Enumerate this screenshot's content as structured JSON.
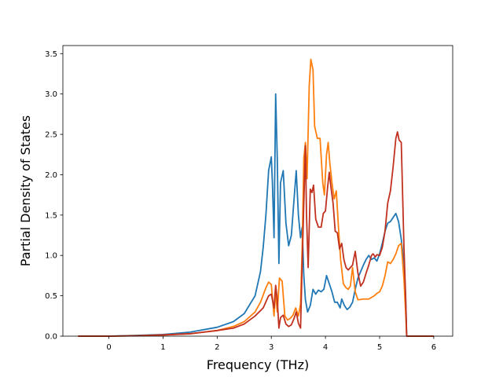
{
  "chart_data": {
    "type": "line",
    "title": "",
    "xlabel": "Frequency (THz)",
    "ylabel": "Partial Density of States",
    "xlim": [
      -0.85,
      6.35
    ],
    "ylim": [
      0.0,
      3.6
    ],
    "xticks": [
      0,
      1,
      2,
      3,
      4,
      5,
      6
    ],
    "xtick_labels": [
      "0",
      "1",
      "2",
      "3",
      "4",
      "5",
      "6"
    ],
    "yticks": [
      0.0,
      0.5,
      1.0,
      1.5,
      2.0,
      2.5,
      3.0,
      3.5
    ],
    "ytick_labels": [
      "0.0",
      "0.5",
      "1.0",
      "1.5",
      "2.0",
      "2.5",
      "3.0",
      "3.5"
    ],
    "grid": false,
    "legend": "none",
    "series": [
      {
        "color": "#1f77b4",
        "points": [
          [
            -0.57,
            0.0
          ],
          [
            0.0,
            0.0
          ],
          [
            0.5,
            0.01
          ],
          [
            1.0,
            0.02
          ],
          [
            1.5,
            0.05
          ],
          [
            2.0,
            0.11
          ],
          [
            2.3,
            0.18
          ],
          [
            2.5,
            0.28
          ],
          [
            2.7,
            0.5
          ],
          [
            2.8,
            0.8
          ],
          [
            2.85,
            1.1
          ],
          [
            2.9,
            1.5
          ],
          [
            2.95,
            2.05
          ],
          [
            3.0,
            2.22
          ],
          [
            3.02,
            1.9
          ],
          [
            3.05,
            1.22
          ],
          [
            3.08,
            3.0
          ],
          [
            3.11,
            2.2
          ],
          [
            3.14,
            0.9
          ],
          [
            3.17,
            1.9
          ],
          [
            3.22,
            2.05
          ],
          [
            3.27,
            1.4
          ],
          [
            3.32,
            1.12
          ],
          [
            3.37,
            1.25
          ],
          [
            3.42,
            1.7
          ],
          [
            3.46,
            2.05
          ],
          [
            3.5,
            1.5
          ],
          [
            3.54,
            1.22
          ],
          [
            3.57,
            1.35
          ],
          [
            3.6,
            0.75
          ],
          [
            3.63,
            0.45
          ],
          [
            3.67,
            0.3
          ],
          [
            3.72,
            0.38
          ],
          [
            3.77,
            0.58
          ],
          [
            3.82,
            0.52
          ],
          [
            3.87,
            0.57
          ],
          [
            3.92,
            0.55
          ],
          [
            3.97,
            0.58
          ],
          [
            4.02,
            0.75
          ],
          [
            4.07,
            0.65
          ],
          [
            4.12,
            0.55
          ],
          [
            4.17,
            0.42
          ],
          [
            4.22,
            0.42
          ],
          [
            4.27,
            0.35
          ],
          [
            4.3,
            0.46
          ],
          [
            4.35,
            0.38
          ],
          [
            4.4,
            0.33
          ],
          [
            4.45,
            0.36
          ],
          [
            4.5,
            0.42
          ],
          [
            4.55,
            0.58
          ],
          [
            4.6,
            0.72
          ],
          [
            4.65,
            0.8
          ],
          [
            4.7,
            0.88
          ],
          [
            4.75,
            0.95
          ],
          [
            4.8,
            1.0
          ],
          [
            4.85,
            0.95
          ],
          [
            4.9,
            0.97
          ],
          [
            4.95,
            0.93
          ],
          [
            5.0,
            1.02
          ],
          [
            5.05,
            1.15
          ],
          [
            5.1,
            1.3
          ],
          [
            5.15,
            1.4
          ],
          [
            5.2,
            1.42
          ],
          [
            5.25,
            1.47
          ],
          [
            5.3,
            1.52
          ],
          [
            5.35,
            1.42
          ],
          [
            5.4,
            1.2
          ],
          [
            5.45,
            0.9
          ],
          [
            5.48,
            0.5
          ],
          [
            5.5,
            0.0
          ],
          [
            6.0,
            0.0
          ]
        ]
      },
      {
        "color": "#ff7f0e",
        "points": [
          [
            -0.57,
            0.0
          ],
          [
            0.0,
            0.0
          ],
          [
            0.5,
            0.005
          ],
          [
            1.0,
            0.015
          ],
          [
            1.5,
            0.03
          ],
          [
            2.0,
            0.07
          ],
          [
            2.3,
            0.12
          ],
          [
            2.5,
            0.18
          ],
          [
            2.7,
            0.3
          ],
          [
            2.8,
            0.42
          ],
          [
            2.9,
            0.6
          ],
          [
            2.95,
            0.67
          ],
          [
            3.0,
            0.64
          ],
          [
            3.05,
            0.25
          ],
          [
            3.08,
            0.55
          ],
          [
            3.11,
            0.3
          ],
          [
            3.15,
            0.72
          ],
          [
            3.2,
            0.68
          ],
          [
            3.25,
            0.25
          ],
          [
            3.3,
            0.2
          ],
          [
            3.35,
            0.22
          ],
          [
            3.4,
            0.26
          ],
          [
            3.45,
            0.35
          ],
          [
            3.5,
            0.25
          ],
          [
            3.54,
            0.4
          ],
          [
            3.57,
            1.1
          ],
          [
            3.6,
            2.2
          ],
          [
            3.63,
            2.4
          ],
          [
            3.66,
            1.95
          ],
          [
            3.7,
            3.1
          ],
          [
            3.73,
            3.43
          ],
          [
            3.77,
            3.3
          ],
          [
            3.8,
            2.6
          ],
          [
            3.85,
            2.45
          ],
          [
            3.9,
            2.45
          ],
          [
            3.95,
            1.9
          ],
          [
            3.98,
            1.75
          ],
          [
            4.02,
            2.25
          ],
          [
            4.05,
            2.4
          ],
          [
            4.08,
            2.15
          ],
          [
            4.12,
            1.9
          ],
          [
            4.16,
            1.7
          ],
          [
            4.2,
            1.8
          ],
          [
            4.24,
            1.35
          ],
          [
            4.28,
            0.95
          ],
          [
            4.33,
            0.65
          ],
          [
            4.38,
            0.6
          ],
          [
            4.42,
            0.58
          ],
          [
            4.46,
            0.62
          ],
          [
            4.5,
            0.85
          ],
          [
            4.55,
            0.55
          ],
          [
            4.6,
            0.45
          ],
          [
            4.7,
            0.46
          ],
          [
            4.8,
            0.46
          ],
          [
            4.9,
            0.5
          ],
          [
            4.95,
            0.53
          ],
          [
            5.0,
            0.55
          ],
          [
            5.05,
            0.62
          ],
          [
            5.1,
            0.75
          ],
          [
            5.15,
            0.92
          ],
          [
            5.2,
            0.9
          ],
          [
            5.25,
            0.95
          ],
          [
            5.3,
            1.02
          ],
          [
            5.35,
            1.12
          ],
          [
            5.4,
            1.15
          ],
          [
            5.45,
            0.7
          ],
          [
            5.48,
            0.3
          ],
          [
            5.5,
            0.0
          ],
          [
            6.0,
            0.0
          ]
        ]
      },
      {
        "color": "#c0311f",
        "points": [
          [
            -0.57,
            0.0
          ],
          [
            0.0,
            0.0
          ],
          [
            0.5,
            0.005
          ],
          [
            1.0,
            0.015
          ],
          [
            1.5,
            0.03
          ],
          [
            2.0,
            0.07
          ],
          [
            2.3,
            0.1
          ],
          [
            2.5,
            0.15
          ],
          [
            2.7,
            0.25
          ],
          [
            2.85,
            0.35
          ],
          [
            2.95,
            0.5
          ],
          [
            3.0,
            0.52
          ],
          [
            3.05,
            0.35
          ],
          [
            3.08,
            0.63
          ],
          [
            3.11,
            0.45
          ],
          [
            3.14,
            0.1
          ],
          [
            3.17,
            0.23
          ],
          [
            3.22,
            0.26
          ],
          [
            3.27,
            0.15
          ],
          [
            3.32,
            0.12
          ],
          [
            3.37,
            0.14
          ],
          [
            3.42,
            0.22
          ],
          [
            3.46,
            0.3
          ],
          [
            3.5,
            0.16
          ],
          [
            3.54,
            0.1
          ],
          [
            3.57,
            0.9
          ],
          [
            3.6,
            1.65
          ],
          [
            3.63,
            2.36
          ],
          [
            3.65,
            1.5
          ],
          [
            3.68,
            0.85
          ],
          [
            3.72,
            1.82
          ],
          [
            3.75,
            1.78
          ],
          [
            3.78,
            1.87
          ],
          [
            3.82,
            1.45
          ],
          [
            3.87,
            1.35
          ],
          [
            3.92,
            1.35
          ],
          [
            3.96,
            1.52
          ],
          [
            4.0,
            1.55
          ],
          [
            4.04,
            1.85
          ],
          [
            4.07,
            2.03
          ],
          [
            4.1,
            1.85
          ],
          [
            4.14,
            1.65
          ],
          [
            4.18,
            1.3
          ],
          [
            4.22,
            1.28
          ],
          [
            4.26,
            1.08
          ],
          [
            4.3,
            1.15
          ],
          [
            4.34,
            0.95
          ],
          [
            4.38,
            0.85
          ],
          [
            4.42,
            0.82
          ],
          [
            4.46,
            0.85
          ],
          [
            4.5,
            0.88
          ],
          [
            4.55,
            1.05
          ],
          [
            4.6,
            0.78
          ],
          [
            4.65,
            0.62
          ],
          [
            4.7,
            0.67
          ],
          [
            4.75,
            0.78
          ],
          [
            4.8,
            0.88
          ],
          [
            4.85,
            1.0
          ],
          [
            4.88,
            1.02
          ],
          [
            4.92,
            0.98
          ],
          [
            4.95,
            1.01
          ],
          [
            5.0,
            1.0
          ],
          [
            5.05,
            1.1
          ],
          [
            5.1,
            1.3
          ],
          [
            5.15,
            1.65
          ],
          [
            5.2,
            1.8
          ],
          [
            5.25,
            2.1
          ],
          [
            5.3,
            2.45
          ],
          [
            5.33,
            2.53
          ],
          [
            5.36,
            2.43
          ],
          [
            5.4,
            2.4
          ],
          [
            5.45,
            1.1
          ],
          [
            5.48,
            0.5
          ],
          [
            5.5,
            0.0
          ],
          [
            6.0,
            0.0
          ]
        ]
      }
    ]
  }
}
